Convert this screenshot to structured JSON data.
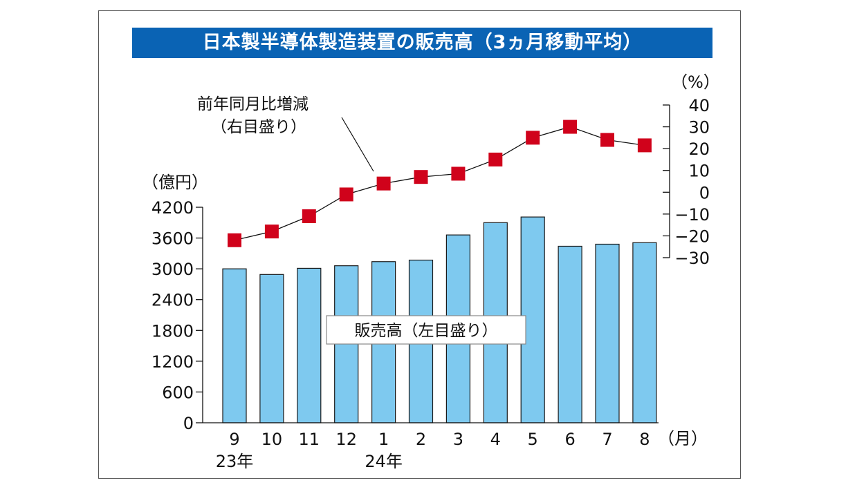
{
  "title": "日本製半導体製造装置の販売高（3ヵ月移動平均）",
  "chart_data": {
    "type": "bar+line",
    "title": "日本製半導体製造装置の販売高（3ヵ月移動平均）",
    "categories": [
      "9",
      "10",
      "11",
      "12",
      "1",
      "2",
      "3",
      "4",
      "5",
      "6",
      "7",
      "8"
    ],
    "year_labels": [
      {
        "index": 0,
        "text": "23年"
      },
      {
        "index": 4,
        "text": "24年"
      }
    ],
    "x_unit": "（月）",
    "left_axis": {
      "unit": "（億円）",
      "ticks": [
        "0",
        "600",
        "1200",
        "1800",
        "2400",
        "3000",
        "3600",
        "4200"
      ],
      "ylim": [
        0,
        4200
      ]
    },
    "right_axis": {
      "unit": "（%）",
      "ticks": [
        "−30",
        "−20",
        "−10",
        "0",
        "10",
        "20",
        "30",
        "40"
      ],
      "ylim": [
        -30,
        40
      ]
    },
    "series": [
      {
        "name": "販売高（左目盛り）",
        "type": "bar",
        "axis": "left",
        "color": "#7ec9ef",
        "values": [
          3000,
          2890,
          3010,
          3060,
          3140,
          3170,
          3660,
          3900,
          4010,
          3440,
          3480,
          3510
        ]
      },
      {
        "name": "前年同月比増減（右目盛り）",
        "type": "line",
        "axis": "right",
        "color": "#d0021b",
        "values": [
          -22,
          -18,
          -11,
          -1,
          4,
          7,
          8.5,
          15,
          25,
          30,
          24,
          21.5
        ]
      }
    ],
    "annotations": {
      "line_label_1": "前年同月比増減",
      "line_label_2": "（右目盛り）",
      "bar_label": "販売高（左目盛り）"
    }
  }
}
